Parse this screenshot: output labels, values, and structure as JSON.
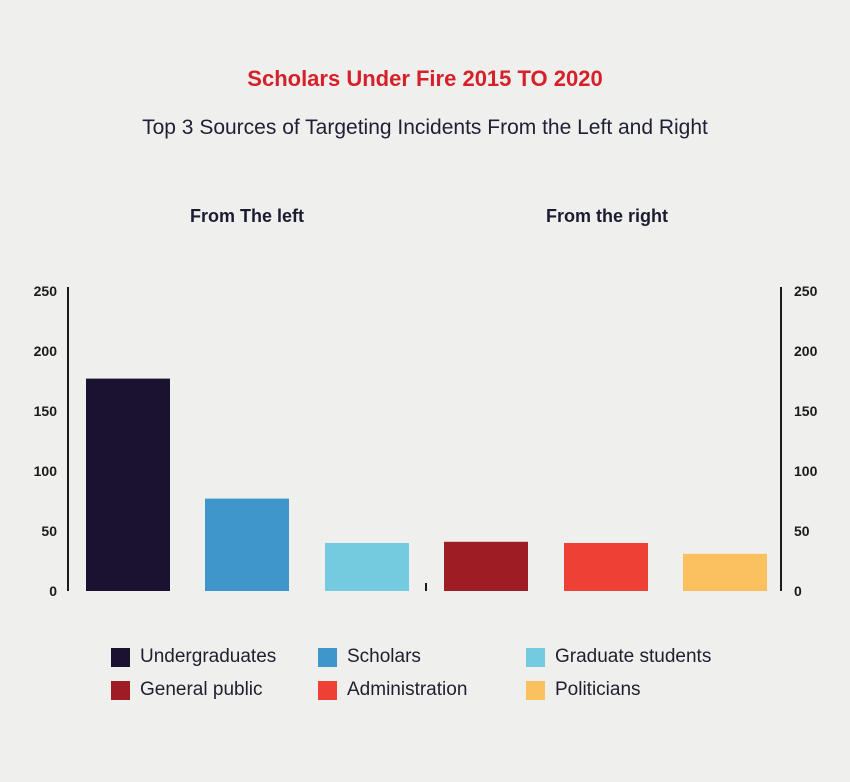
{
  "title": "Scholars Under Fire 2015 TO 2020",
  "subtitle": "Top 3 Sources of Targeting Incidents From the Left and Right",
  "chart_data": {
    "type": "bar",
    "groups": [
      {
        "label": "From The left",
        "categories": [
          "Undergraduates",
          "Scholars",
          "Graduate students"
        ]
      },
      {
        "label": "From the right",
        "categories": [
          "General public",
          "Administration",
          "Politicians"
        ]
      }
    ],
    "categories": [
      "Undergraduates",
      "Scholars",
      "Graduate students",
      "General public",
      "Administration",
      "Politicians"
    ],
    "values": [
      177,
      77,
      40,
      41,
      40,
      31
    ],
    "colors": [
      "#1b1130",
      "#3f96cb",
      "#74cbe0",
      "#9e1d25",
      "#ee4034",
      "#fcc15f"
    ],
    "ylim": [
      0,
      250
    ],
    "yticks": [
      "0",
      "50",
      "100",
      "150",
      "200",
      "250"
    ],
    "grid": false,
    "legend_position": "bottom"
  },
  "legend": [
    {
      "label": "Undergraduates",
      "color": "#1b1130"
    },
    {
      "label": "Scholars",
      "color": "#3f96cb"
    },
    {
      "label": "Graduate students",
      "color": "#74cbe0"
    },
    {
      "label": "General public",
      "color": "#9e1d25"
    },
    {
      "label": "Administration",
      "color": "#ee4034"
    },
    {
      "label": "Politicians",
      "color": "#fcc15f"
    }
  ]
}
